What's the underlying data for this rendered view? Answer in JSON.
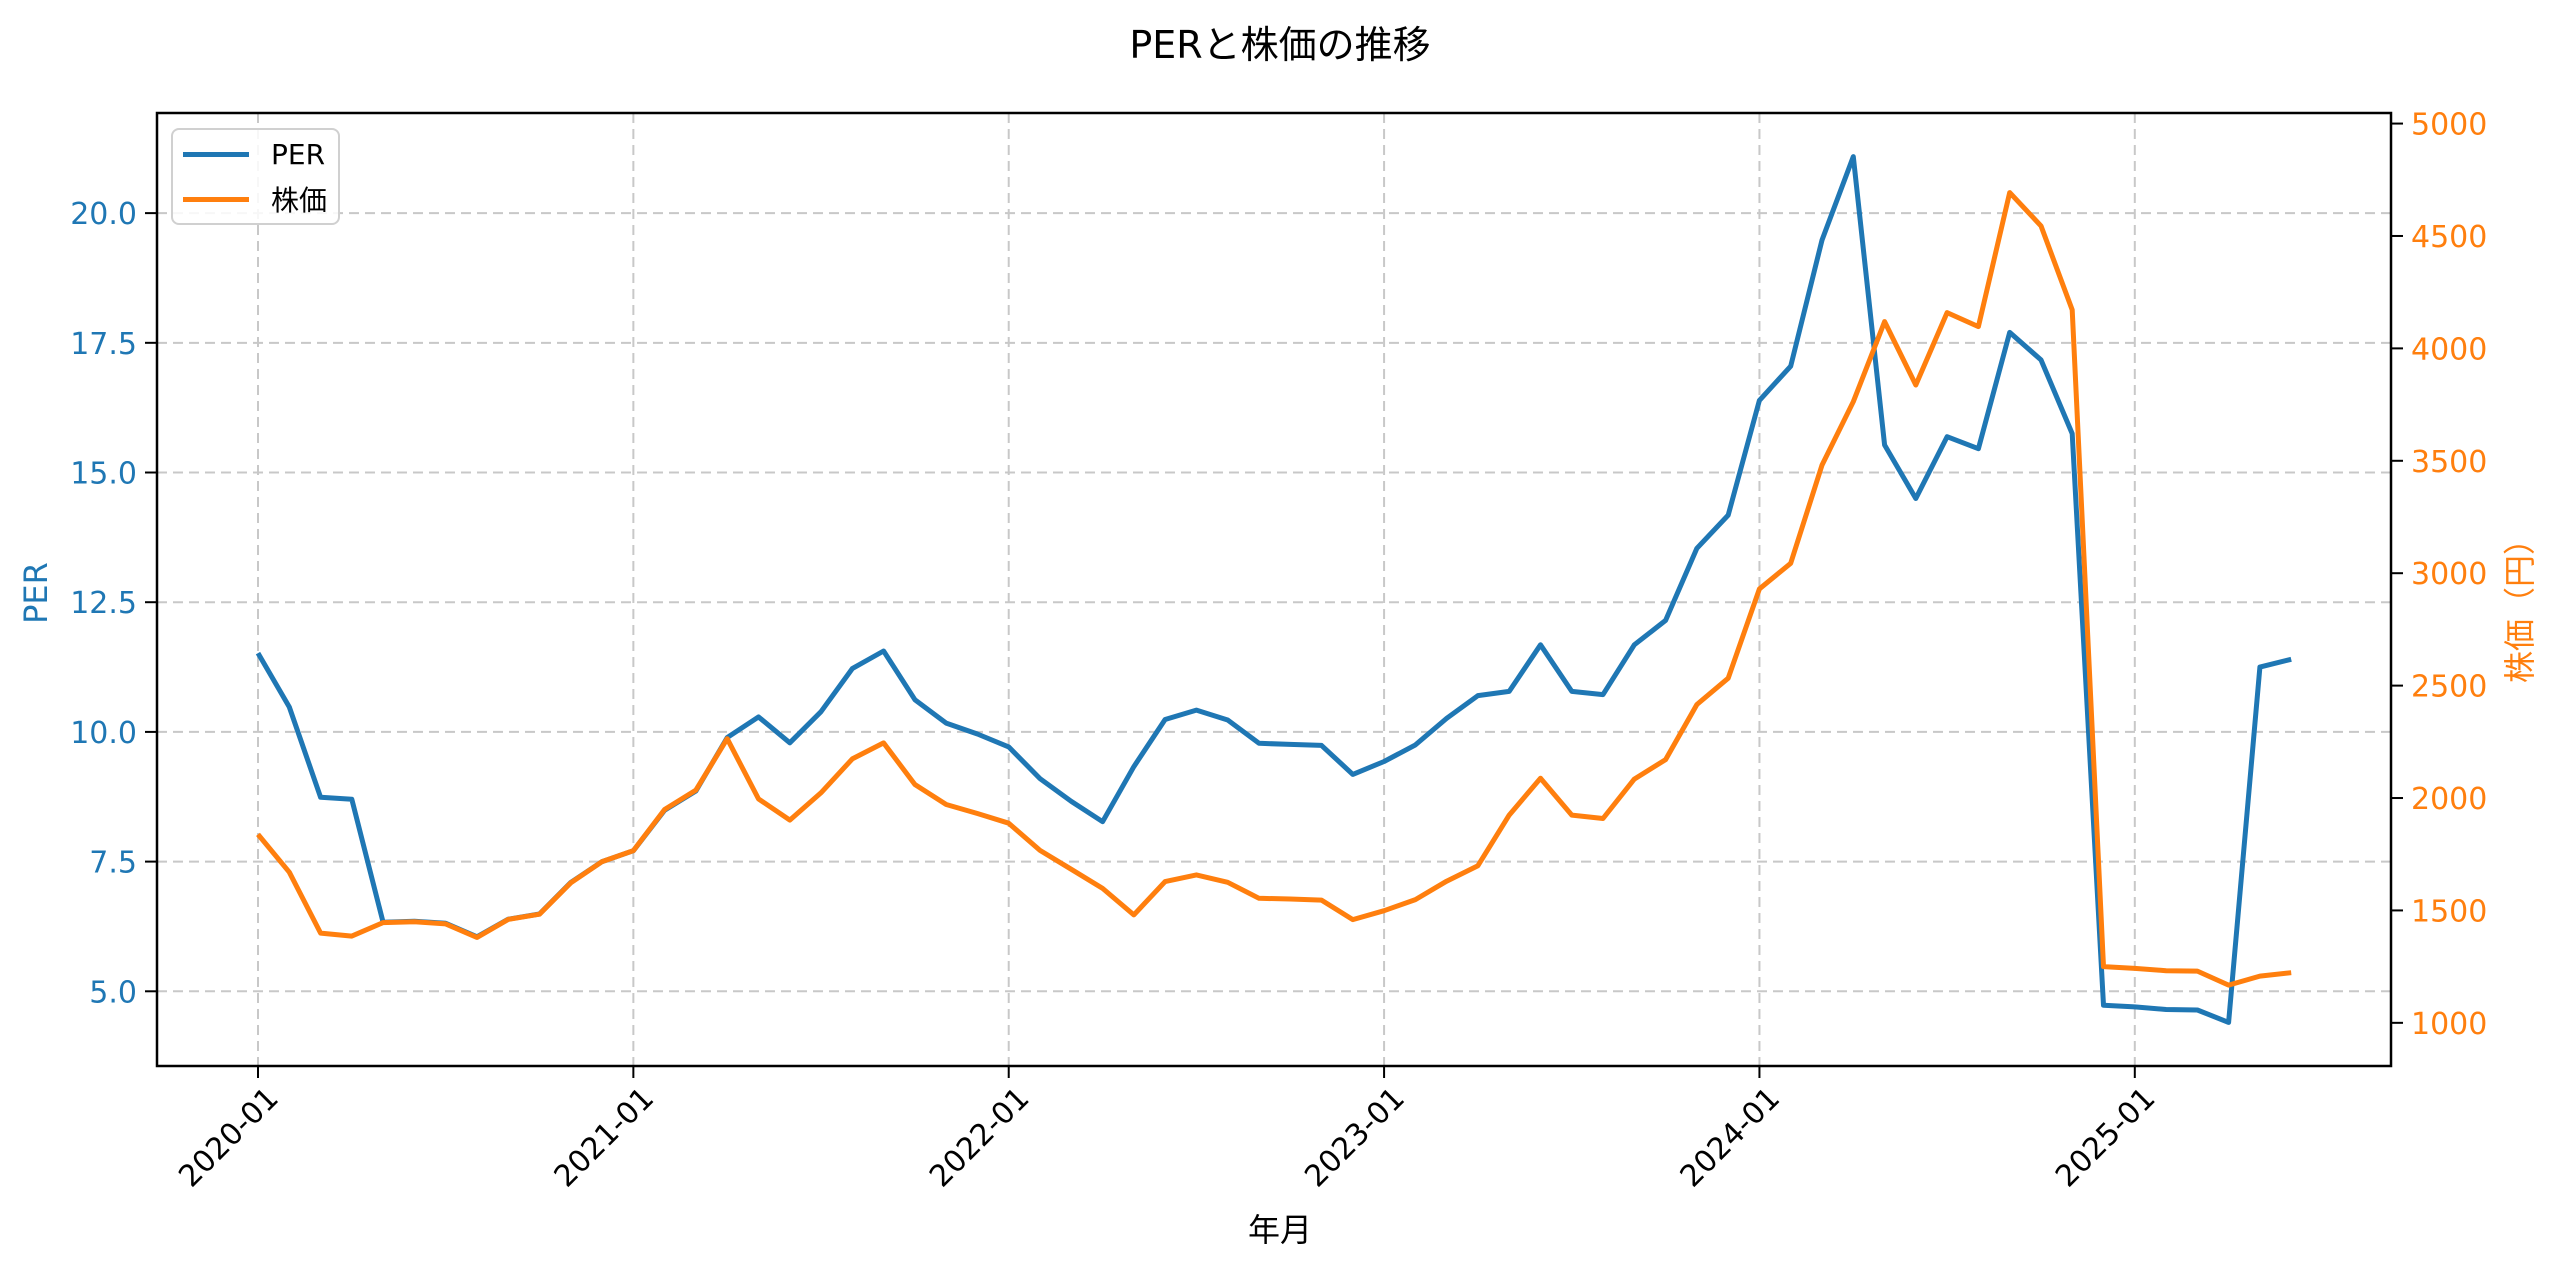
{
  "chart_data": {
    "type": "line",
    "title": "PERと株価の推移",
    "xlabel": "年月",
    "ylabel": "PER",
    "ylabel_right": "株価（円）",
    "x_start": "2020-01",
    "x": [
      "2020-01",
      "2020-02",
      "2020-03",
      "2020-04",
      "2020-05",
      "2020-06",
      "2020-07",
      "2020-08",
      "2020-09",
      "2020-10",
      "2020-11",
      "2020-12",
      "2021-01",
      "2021-02",
      "2021-03",
      "2021-04",
      "2021-05",
      "2021-06",
      "2021-07",
      "2021-08",
      "2021-09",
      "2021-10",
      "2021-11",
      "2021-12",
      "2022-01",
      "2022-02",
      "2022-03",
      "2022-04",
      "2022-05",
      "2022-06",
      "2022-07",
      "2022-08",
      "2022-09",
      "2022-10",
      "2022-11",
      "2022-12",
      "2023-01",
      "2023-02",
      "2023-03",
      "2023-04",
      "2023-05",
      "2023-06",
      "2023-07",
      "2023-08",
      "2023-09",
      "2023-10",
      "2023-11",
      "2023-12",
      "2024-01",
      "2024-02",
      "2024-03",
      "2024-04",
      "2024-05",
      "2024-06",
      "2024-07",
      "2024-08",
      "2024-09",
      "2024-10",
      "2024-11",
      "2024-12",
      "2025-01",
      "2025-02",
      "2025-03",
      "2025-04",
      "2025-05",
      "2025-06"
    ],
    "x_ticks": [
      "2020-01",
      "2021-01",
      "2022-01",
      "2023-01",
      "2024-01",
      "2025-01"
    ],
    "y_ticks_left": [
      "5.0",
      "7.5",
      "10.0",
      "12.5",
      "15.0",
      "17.5",
      "20.0"
    ],
    "y_ticks_right": [
      "1000",
      "1500",
      "2000",
      "2500",
      "3000",
      "3500",
      "4000",
      "4500",
      "5000"
    ],
    "ylim_left": [
      3.56,
      21.93
    ],
    "ylim_right": [
      808,
      5047
    ],
    "grid": true,
    "legend_position": "upper left",
    "series": [
      {
        "name": "PER",
        "axis": "left",
        "color": "#1f77b4",
        "values": [
          11.52,
          10.48,
          8.74,
          8.7,
          6.33,
          6.35,
          6.31,
          6.05,
          6.39,
          6.49,
          7.1,
          7.5,
          7.71,
          8.49,
          8.86,
          9.89,
          10.29,
          9.79,
          10.39,
          11.22,
          11.56,
          10.62,
          10.17,
          9.96,
          9.71,
          9.1,
          8.66,
          8.27,
          9.33,
          10.24,
          10.42,
          10.23,
          9.78,
          9.76,
          9.74,
          9.18,
          9.43,
          9.75,
          10.26,
          10.7,
          10.78,
          11.68,
          10.78,
          10.72,
          11.68,
          12.15,
          13.54,
          14.18,
          16.39,
          17.05,
          19.48,
          21.09,
          15.53,
          14.5,
          15.69,
          15.46,
          17.7,
          17.17,
          15.75,
          4.73,
          4.7,
          4.65,
          4.64,
          4.4,
          11.25,
          11.4
        ]
      },
      {
        "name": "株価",
        "axis": "right",
        "color": "#ff7f0e",
        "values": [
          1838,
          1670,
          1399,
          1386,
          1446,
          1450,
          1440,
          1380,
          1460,
          1483,
          1623,
          1717,
          1766,
          1949,
          2035,
          2264,
          1996,
          1902,
          2023,
          2174,
          2245,
          2060,
          1971,
          1931,
          1888,
          1767,
          1683,
          1598,
          1480,
          1628,
          1658,
          1625,
          1554,
          1551,
          1546,
          1459,
          1499,
          1548,
          1630,
          1699,
          1924,
          2088,
          1924,
          1909,
          2084,
          2171,
          2416,
          2533,
          2930,
          3044,
          3481,
          3763,
          4119,
          3837,
          4159,
          4097,
          4693,
          4545,
          4171,
          1250,
          1242,
          1232,
          1230,
          1168,
          1208,
          1223
        ]
      }
    ]
  },
  "legend": {
    "items": [
      {
        "label": "PER",
        "color": "#1f77b4"
      },
      {
        "label": "株価",
        "color": "#ff7f0e"
      }
    ]
  },
  "colors": {
    "left_axis": "#1f77b4",
    "right_axis": "#ff7f0e",
    "grid": "#c8c8c8",
    "spine": "#000000"
  }
}
